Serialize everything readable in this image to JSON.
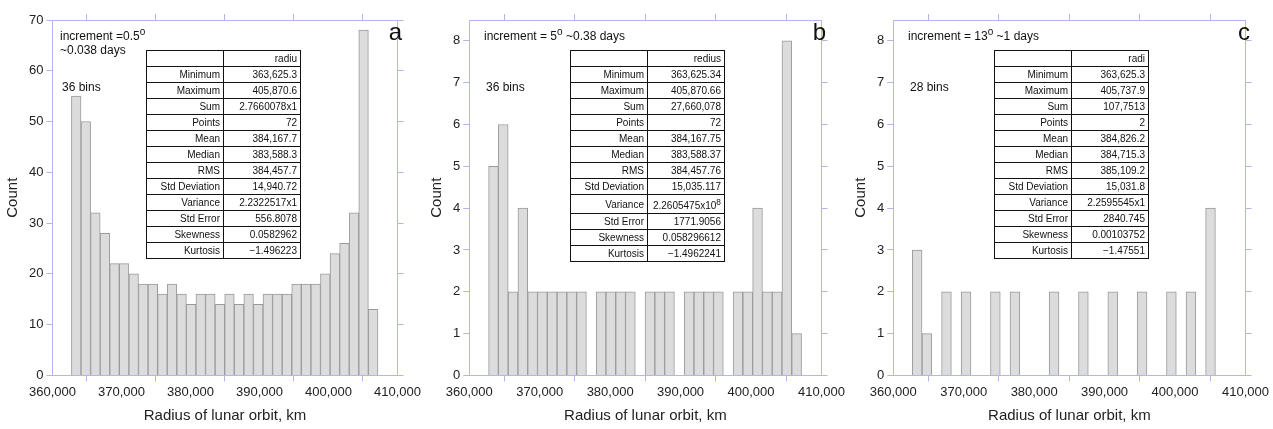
{
  "chart_data": [
    {
      "type": "histogram",
      "title": "a",
      "xlabel": "Radius of lunar orbit, km",
      "ylabel": "Count",
      "color": "#dcdcdc",
      "bins": [
        362750,
        364138,
        365526,
        366914,
        368302,
        369690,
        371078,
        372466,
        373854,
        375242,
        376630,
        378018,
        379406,
        380794,
        382182,
        383570,
        384958,
        386346,
        387734,
        389122,
        390510,
        391898,
        393286,
        394674,
        396062,
        397450,
        398838,
        400226,
        401614,
        403002,
        404390,
        405778,
        407166
      ],
      "values": [
        55,
        50,
        32,
        28,
        22,
        22,
        20,
        18,
        18,
        16,
        18,
        16,
        14,
        16,
        16,
        14,
        16,
        14,
        16,
        14,
        16,
        16,
        16,
        18,
        18,
        18,
        20,
        24,
        26,
        32,
        68,
        13
      ],
      "xlim": [
        360000,
        410000
      ],
      "xticks": [
        {
          "value": 360000,
          "label": "360,000"
        },
        {
          "value": 370000,
          "label": "370,000"
        },
        {
          "value": 380000,
          "label": "380,000"
        },
        {
          "value": 390000,
          "label": "390,000"
        },
        {
          "value": 400000,
          "label": "400,000"
        },
        {
          "value": 410000,
          "label": "410,000"
        }
      ],
      "ylim": [
        0,
        70
      ],
      "yticks": [
        0,
        10,
        20,
        30,
        40,
        50,
        60,
        70
      ],
      "annotations": [
        "increment =0.5$^{o}$\n~0.038 days",
        "36 bins",
        "radiu",
        "Minimum",
        "363,625.3",
        "Maximum",
        "405,870.6",
        "Sum",
        "2.7660078x1",
        "Points",
        "72",
        "Mean",
        "384,167.7",
        "Median",
        "383,588.3",
        "RMS",
        "384,457.7",
        "Std Deviation",
        "14,940.72",
        "Variance",
        "2.2322517x1",
        "Std Error",
        "556.8078",
        "Skewness",
        "0.0582962",
        "Kurtosis",
        "−1.496223"
      ]
    },
    {
      "type": "histogram",
      "title": "b",
      "xlabel": "Radius of lunar orbit, km",
      "ylabel": "Count",
      "color": "#dcdcdc",
      "bins": [
        362750,
        364138,
        365526,
        366914,
        368302,
        369690,
        371078,
        372466,
        373854,
        375242,
        376630,
        378018,
        379406,
        380794,
        382182,
        383570,
        384958,
        386346,
        387734,
        389122,
        390510,
        391898,
        393286,
        394674,
        396062,
        397450,
        398838,
        400226,
        401614,
        403002,
        404390,
        405778,
        407166
      ],
      "values": [
        5,
        6,
        2,
        4,
        2,
        2,
        2,
        2,
        2,
        2,
        0,
        2,
        2,
        2,
        2,
        0,
        2,
        2,
        2,
        0,
        2,
        2,
        2,
        2,
        0,
        2,
        2,
        4,
        2,
        2,
        8,
        1
      ],
      "xlim": [
        360000,
        410000
      ],
      "xticks": [
        {
          "value": 360000,
          "label": "360,000"
        },
        {
          "value": 370000,
          "label": "370,000"
        },
        {
          "value": 380000,
          "label": "380,000"
        },
        {
          "value": 390000,
          "label": "390,000"
        },
        {
          "value": 400000,
          "label": "400,000"
        },
        {
          "value": 410000,
          "label": "410,000"
        }
      ],
      "ylim": [
        0,
        8.5
      ],
      "yticks": [
        0,
        1,
        2,
        3,
        4,
        5,
        6,
        7,
        8
      ],
      "annotations": [
        "increment = 5$^{o}$ ~0.38 days",
        "36 bins",
        "redius",
        "Minimum",
        "363,625.34",
        "Maximum",
        "405,870.66",
        "Sum",
        "27,660,078",
        "Points",
        "72",
        "Mean",
        "384,167.75",
        "Median",
        "383,588.37",
        "RMS",
        "384,457.76",
        "Std Deviation",
        "15,035.117",
        "Variance",
        "2.2605475x10$^{8}$",
        "Std Error",
        "1771.9056",
        "Skewness",
        "0.058296612",
        "Kurtosis",
        "−1.4962241"
      ]
    },
    {
      "type": "histogram",
      "title": "c",
      "xlabel": "Radius of lunar orbit, km",
      "ylabel": "Count",
      "color": "#dcdcdc",
      "bins": [
        362700,
        364088,
        365476,
        366864,
        368252,
        369640,
        371028,
        372416,
        373804,
        375192,
        376580,
        377968,
        379356,
        380744,
        382132,
        383520,
        384908,
        386296,
        387684,
        389072,
        390460,
        391848,
        393236,
        394624,
        396012,
        397400,
        398788,
        400176,
        401564,
        402952,
        404340,
        405728,
        407116
      ],
      "values": [
        3,
        1,
        0,
        2,
        0,
        2,
        0,
        0,
        2,
        0,
        2,
        0,
        0,
        0,
        2,
        0,
        0,
        2,
        0,
        0,
        2,
        0,
        0,
        2,
        0,
        0,
        2,
        0,
        2,
        0,
        4,
        0
      ],
      "xlim": [
        360000,
        410000
      ],
      "xticks": [
        {
          "value": 360000,
          "label": "360,000"
        },
        {
          "value": 370000,
          "label": "370,000"
        },
        {
          "value": 380000,
          "label": "380,000"
        },
        {
          "value": 390000,
          "label": "390,000"
        },
        {
          "value": 400000,
          "label": "400,000"
        },
        {
          "value": 410000,
          "label": "410,000"
        }
      ],
      "ylim": [
        0,
        8.5
      ],
      "yticks": [
        0,
        1,
        2,
        3,
        4,
        5,
        6,
        7,
        8
      ],
      "annotations": [
        "increment = 13$^{o}$ ~1 days",
        "28 bins",
        "radi",
        "Minimum",
        "363,625.3",
        "Maximum",
        "405,737.9",
        "Sum",
        "107,7513",
        "Points",
        "2",
        "Mean",
        "384,826.2",
        "Median",
        "384,715.3",
        "RMS",
        "385,109.2",
        "Std Deviation",
        "15,031.8",
        "Variance",
        "2.2595545x1",
        "Std Error",
        "2840.745",
        "Skewness",
        "0.00103752",
        "Kurtosis",
        "−1.47551"
      ]
    }
  ]
}
